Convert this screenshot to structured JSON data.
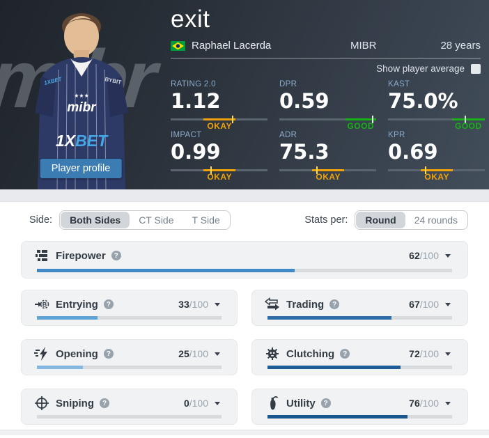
{
  "header": {
    "title": "exit",
    "real_name": "Raphael Lacerda",
    "team": "MIBR",
    "age": "28 years",
    "show_average_label": "Show player average",
    "player_button": "Player profile",
    "watermark": "mibr",
    "jersey": {
      "team_logo": "mibr",
      "stars": "★★★",
      "sponsor_1x": "1X",
      "sponsor_bet": "BET",
      "shoulder_left": "1XBET",
      "shoulder_right": "BYBIT"
    },
    "stats": [
      {
        "label": "RATING 2.0",
        "value": "1.12",
        "verdict": "OKAY",
        "seg_color": "#f0a30a",
        "tick_color": "#ffd95e",
        "seg_start": 34,
        "seg_end": 67,
        "tick": 63
      },
      {
        "label": "DPR",
        "value": "0.59",
        "verdict": "GOOD",
        "seg_color": "#16b216",
        "tick_color": "#e2f8e2",
        "seg_start": 68,
        "seg_end": 100,
        "tick": 96
      },
      {
        "label": "KAST",
        "value": "75.0%",
        "verdict": "GOOD",
        "seg_color": "#16b216",
        "tick_color": "#cfeccf",
        "seg_start": 66,
        "seg_end": 100,
        "tick": 79
      },
      {
        "label": "IMPACT",
        "value": "0.99",
        "verdict": "OKAY",
        "seg_color": "#f0a30a",
        "tick_color": "#ffd95e",
        "seg_start": 34,
        "seg_end": 67,
        "tick": 41
      },
      {
        "label": "ADR",
        "value": "75.3",
        "verdict": "OKAY",
        "seg_color": "#f0a30a",
        "tick_color": "#ffd95e",
        "seg_start": 34,
        "seg_end": 67,
        "tick": 38
      },
      {
        "label": "KPR",
        "value": "0.69",
        "verdict": "OKAY",
        "seg_color": "#f0a30a",
        "tick_color": "#ffd95e",
        "seg_start": 34,
        "seg_end": 67,
        "tick": 38
      }
    ]
  },
  "filters": {
    "side_label": "Side:",
    "side_options": [
      {
        "label": "Both Sides",
        "selected": true
      },
      {
        "label": "CT Side",
        "selected": false
      },
      {
        "label": "T Side",
        "selected": false
      }
    ],
    "stats_per_label": "Stats per:",
    "stats_per_options": [
      {
        "label": "Round",
        "selected": true
      },
      {
        "label": "24 rounds",
        "selected": false
      }
    ]
  },
  "skills": [
    {
      "name": "Firepower",
      "value": 62,
      "color": "#3f87c5"
    },
    {
      "name": "Entrying",
      "value": 33,
      "color": "#60a3d6"
    },
    {
      "name": "Trading",
      "value": 67,
      "color": "#2e6da6"
    },
    {
      "name": "Opening",
      "value": 25,
      "color": "#85b7e0"
    },
    {
      "name": "Clutching",
      "value": 72,
      "color": "#1e5c95"
    },
    {
      "name": "Sniping",
      "value": 0,
      "color": "#3f87c5"
    },
    {
      "name": "Utility",
      "value": 76,
      "color": "#1a578f"
    }
  ],
  "ui": {
    "outof": "/100",
    "help_glyph": "?"
  }
}
